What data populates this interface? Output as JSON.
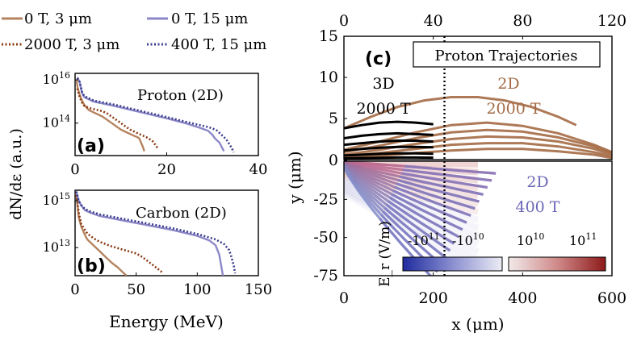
{
  "colors": {
    "brown": "#b5835f",
    "dark_brown": "#8b3a12",
    "purple": "#8c88c8",
    "navy": "#3a3c8c",
    "traj_brown": "#a46a45",
    "traj_black": "#000000",
    "cmap_neg": "#1f2b9e",
    "cmap_pos": "#8e1a1a"
  },
  "legend": {
    "entries": [
      {
        "label": "0 T, 3 μm",
        "style": "solid",
        "color": "#b5835f"
      },
      {
        "label": "0 T, 15 μm",
        "style": "solid",
        "color": "#8c88c8"
      },
      {
        "label": "2000 T, 3 μm",
        "style": "dotted",
        "color": "#8b3a12"
      },
      {
        "label": "400 T, 15 μm",
        "style": "dotted",
        "color": "#3a3c8c"
      }
    ]
  },
  "chart_data": [
    {
      "id": "a",
      "type": "line",
      "panel_label": "(a)",
      "title": "Proton (2D)",
      "xlabel": "",
      "ylabel": "dN/dε (a.u.)",
      "xlim": [
        0,
        40
      ],
      "xticks": [
        "0",
        "20",
        "40"
      ],
      "yscale": "log",
      "ylim_exp": [
        12.5,
        16.3
      ],
      "ytick_labels": [
        {
          "base": "10",
          "exp": "16",
          "value": 16
        },
        {
          "base": "10",
          "exp": "14",
          "value": 14
        }
      ],
      "series": [
        {
          "name": "0 T, 3 μm",
          "style": "solid",
          "color": "#b5835f",
          "x": [
            0.3,
            0.6,
            1,
            1.5,
            2,
            3,
            4,
            5,
            6,
            7,
            8,
            9,
            10,
            11,
            12,
            13,
            13.6,
            14,
            14.4,
            14.8,
            15.1
          ],
          "logy": [
            16.0,
            15.6,
            15.3,
            15.05,
            14.85,
            14.6,
            14.5,
            14.4,
            14.3,
            14.15,
            14.0,
            13.85,
            13.7,
            13.6,
            13.5,
            13.4,
            13.35,
            13.3,
            13.1,
            12.9,
            12.7
          ]
        },
        {
          "name": "2000 T, 3 μm",
          "style": "dotted",
          "color": "#8b3a12",
          "x": [
            0.5,
            1,
            1.5,
            2,
            3,
            4,
            5,
            6,
            7,
            8,
            9,
            10,
            11,
            12,
            13,
            14,
            15,
            16,
            17,
            17.5,
            18
          ],
          "logy": [
            15.6,
            15.2,
            14.95,
            14.8,
            14.7,
            14.65,
            14.6,
            14.55,
            14.45,
            14.3,
            14.15,
            14.0,
            13.85,
            13.7,
            13.6,
            13.5,
            13.4,
            13.3,
            13.15,
            13.0,
            12.85
          ]
        },
        {
          "name": "0 T, 15 μm",
          "style": "solid",
          "color": "#8c88c8",
          "x": [
            0.5,
            1,
            1.5,
            2,
            3,
            4,
            5,
            8,
            12,
            16,
            20,
            24,
            27,
            29,
            30,
            30.5,
            31,
            31.5,
            32,
            32.5
          ],
          "logy": [
            16.1,
            15.9,
            15.4,
            15.2,
            15.1,
            15.0,
            14.95,
            14.82,
            14.62,
            14.42,
            14.22,
            14.0,
            13.8,
            13.65,
            13.45,
            13.3,
            13.2,
            13.1,
            12.9,
            12.7
          ]
        },
        {
          "name": "400 T, 15 μm",
          "style": "dotted",
          "color": "#3a3c8c",
          "x": [
            0.5,
            1,
            1.5,
            2,
            3,
            4,
            5,
            8,
            12,
            16,
            20,
            24,
            27,
            29,
            30,
            31,
            32,
            33,
            33.6,
            34.2,
            34.6
          ],
          "logy": [
            16.1,
            15.9,
            15.45,
            15.25,
            15.15,
            15.05,
            15.0,
            14.88,
            14.68,
            14.48,
            14.28,
            14.07,
            13.92,
            13.82,
            13.75,
            13.65,
            13.45,
            13.25,
            13.05,
            12.85,
            12.65
          ]
        }
      ]
    },
    {
      "id": "b",
      "type": "line",
      "panel_label": "(b)",
      "title": "Carbon (2D)",
      "xlabel": "Energy (MeV)",
      "ylabel": "dN/dε (a.u.)",
      "xlim": [
        0,
        150
      ],
      "xticks": [
        "0",
        "50",
        "100",
        "150"
      ],
      "yscale": "log",
      "ylim_exp": [
        11.8,
        15.45
      ],
      "ytick_labels": [
        {
          "base": "10",
          "exp": "15",
          "value": 15
        },
        {
          "base": "10",
          "exp": "13",
          "value": 13
        }
      ],
      "series": [
        {
          "name": "0 T, 3 μm",
          "style": "solid",
          "color": "#b5835f",
          "x": [
            1,
            2,
            3,
            5,
            8,
            10,
            15,
            20,
            25,
            30,
            35,
            38,
            40,
            41,
            42
          ],
          "logy": [
            15.3,
            14.8,
            14.3,
            13.9,
            13.55,
            13.35,
            13.1,
            12.85,
            12.6,
            12.35,
            12.15,
            12.0,
            11.9,
            11.85,
            11.8
          ]
        },
        {
          "name": "2000 T, 3 μm",
          "style": "dotted",
          "color": "#8b3a12",
          "x": [
            1,
            3,
            5,
            10,
            15,
            20,
            30,
            40,
            50,
            55,
            60,
            65,
            70,
            72
          ],
          "logy": [
            15.25,
            14.5,
            14.0,
            13.6,
            13.4,
            13.25,
            13.05,
            12.9,
            12.75,
            12.6,
            12.4,
            12.2,
            12.0,
            11.9
          ]
        },
        {
          "name": "0 T, 15 μm",
          "style": "solid",
          "color": "#8c88c8",
          "x": [
            1,
            2,
            3,
            5,
            8,
            12,
            20,
            30,
            40,
            60,
            80,
            100,
            110,
            115,
            118,
            120,
            121
          ],
          "logy": [
            15.4,
            15.2,
            15.0,
            14.8,
            14.6,
            14.5,
            14.35,
            14.25,
            14.15,
            13.95,
            13.75,
            13.5,
            13.3,
            13.1,
            12.7,
            12.1,
            11.8
          ]
        },
        {
          "name": "400 T, 15 μm",
          "style": "dotted",
          "color": "#3a3c8c",
          "x": [
            1,
            2,
            3,
            5,
            8,
            12,
            20,
            30,
            40,
            60,
            80,
            100,
            115,
            122,
            126,
            128,
            130,
            131
          ],
          "logy": [
            15.4,
            15.2,
            15.0,
            14.82,
            14.65,
            14.55,
            14.42,
            14.32,
            14.22,
            14.02,
            13.82,
            13.58,
            13.35,
            13.15,
            12.9,
            12.6,
            12.2,
            11.9
          ]
        }
      ]
    },
    {
      "id": "c",
      "type": "line",
      "panel_label": "(c)",
      "title": "Proton Trajectories",
      "xlabel": "x (μm)",
      "ylabel": "y (μm)",
      "xlim": [
        0,
        600
      ],
      "xticks": [
        "0",
        "200",
        "400",
        "600"
      ],
      "top_axis": {
        "lim": [
          0,
          120
        ],
        "ticks": [
          "0",
          "40",
          "80",
          "120"
        ]
      },
      "ylim": [
        -75,
        15
      ],
      "yticks": [
        "-75",
        "-50",
        "-25",
        "0",
        "5",
        "10",
        "15"
      ],
      "upper_ylim": [
        0,
        15
      ],
      "lower_ylim": [
        -75,
        0
      ],
      "vline_x": 225,
      "annotations": {
        "upper_left": [
          "3D",
          "2000 T"
        ],
        "upper_right": [
          "2D",
          "2000 T"
        ],
        "lower_right": [
          "2D",
          "400 T"
        ]
      },
      "traj_3d_2000T": [
        {
          "x": [
            0,
            40,
            80,
            120,
            160,
            200
          ],
          "y": [
            3.8,
            4.2,
            4.5,
            4.6,
            4.5,
            4.3
          ]
        },
        {
          "x": [
            0,
            40,
            80,
            120,
            160,
            200
          ],
          "y": [
            2.6,
            2.9,
            3.1,
            3.2,
            3.1,
            3.0
          ]
        },
        {
          "x": [
            0,
            40,
            80,
            120,
            160,
            200
          ],
          "y": [
            1.8,
            2.0,
            2.2,
            2.3,
            2.3,
            2.2
          ]
        },
        {
          "x": [
            0,
            40,
            80,
            120,
            160,
            200
          ],
          "y": [
            1.1,
            1.3,
            1.45,
            1.55,
            1.55,
            1.5
          ]
        },
        {
          "x": [
            0,
            40,
            80,
            120,
            160,
            200
          ],
          "y": [
            0.5,
            0.6,
            0.7,
            0.75,
            0.75,
            0.72
          ]
        },
        {
          "x": [
            0,
            40,
            80,
            120,
            160,
            200
          ],
          "y": [
            0.15,
            0.2,
            0.22,
            0.25,
            0.25,
            0.24
          ]
        }
      ],
      "traj_2d_2000T": [
        {
          "x": [
            0,
            60,
            120,
            180,
            240,
            300,
            360,
            420,
            480,
            520
          ],
          "y": [
            3.8,
            5.2,
            6.4,
            7.2,
            7.6,
            7.6,
            7.2,
            6.4,
            5.2,
            4.2
          ]
        },
        {
          "x": [
            0,
            80,
            160,
            240,
            320,
            400,
            480,
            560,
            600
          ],
          "y": [
            1.2,
            2.2,
            3.3,
            4.2,
            4.5,
            4.1,
            3.2,
            1.8,
            0.9
          ]
        },
        {
          "x": [
            0,
            80,
            160,
            240,
            320,
            400,
            480,
            560,
            600
          ],
          "y": [
            0.9,
            1.7,
            2.6,
            3.3,
            3.6,
            3.4,
            2.7,
            1.6,
            0.8
          ]
        },
        {
          "x": [
            0,
            80,
            160,
            240,
            320,
            400,
            480,
            560,
            600
          ],
          "y": [
            0.6,
            1.2,
            1.9,
            2.5,
            2.8,
            2.7,
            2.2,
            1.3,
            0.6
          ]
        },
        {
          "x": [
            0,
            80,
            160,
            240,
            320,
            400,
            480,
            560,
            600
          ],
          "y": [
            0.4,
            0.8,
            1.3,
            1.8,
            2.0,
            2.0,
            1.6,
            0.9,
            0.4
          ]
        },
        {
          "x": [
            0,
            80,
            160,
            240,
            320,
            400,
            480,
            560,
            600
          ],
          "y": [
            0.2,
            0.45,
            0.8,
            1.1,
            1.3,
            1.3,
            1.0,
            0.6,
            0.2
          ]
        }
      ],
      "traj_2d_400T_count": 16,
      "colorbar": {
        "label": "E_r (V/m)",
        "neg_ticks": [
          {
            "base": "-10",
            "exp": "11"
          },
          {
            "base": "-10",
            "exp": "10"
          }
        ],
        "pos_ticks": [
          {
            "base": "10",
            "exp": "10"
          },
          {
            "base": "10",
            "exp": "11"
          }
        ]
      }
    }
  ]
}
